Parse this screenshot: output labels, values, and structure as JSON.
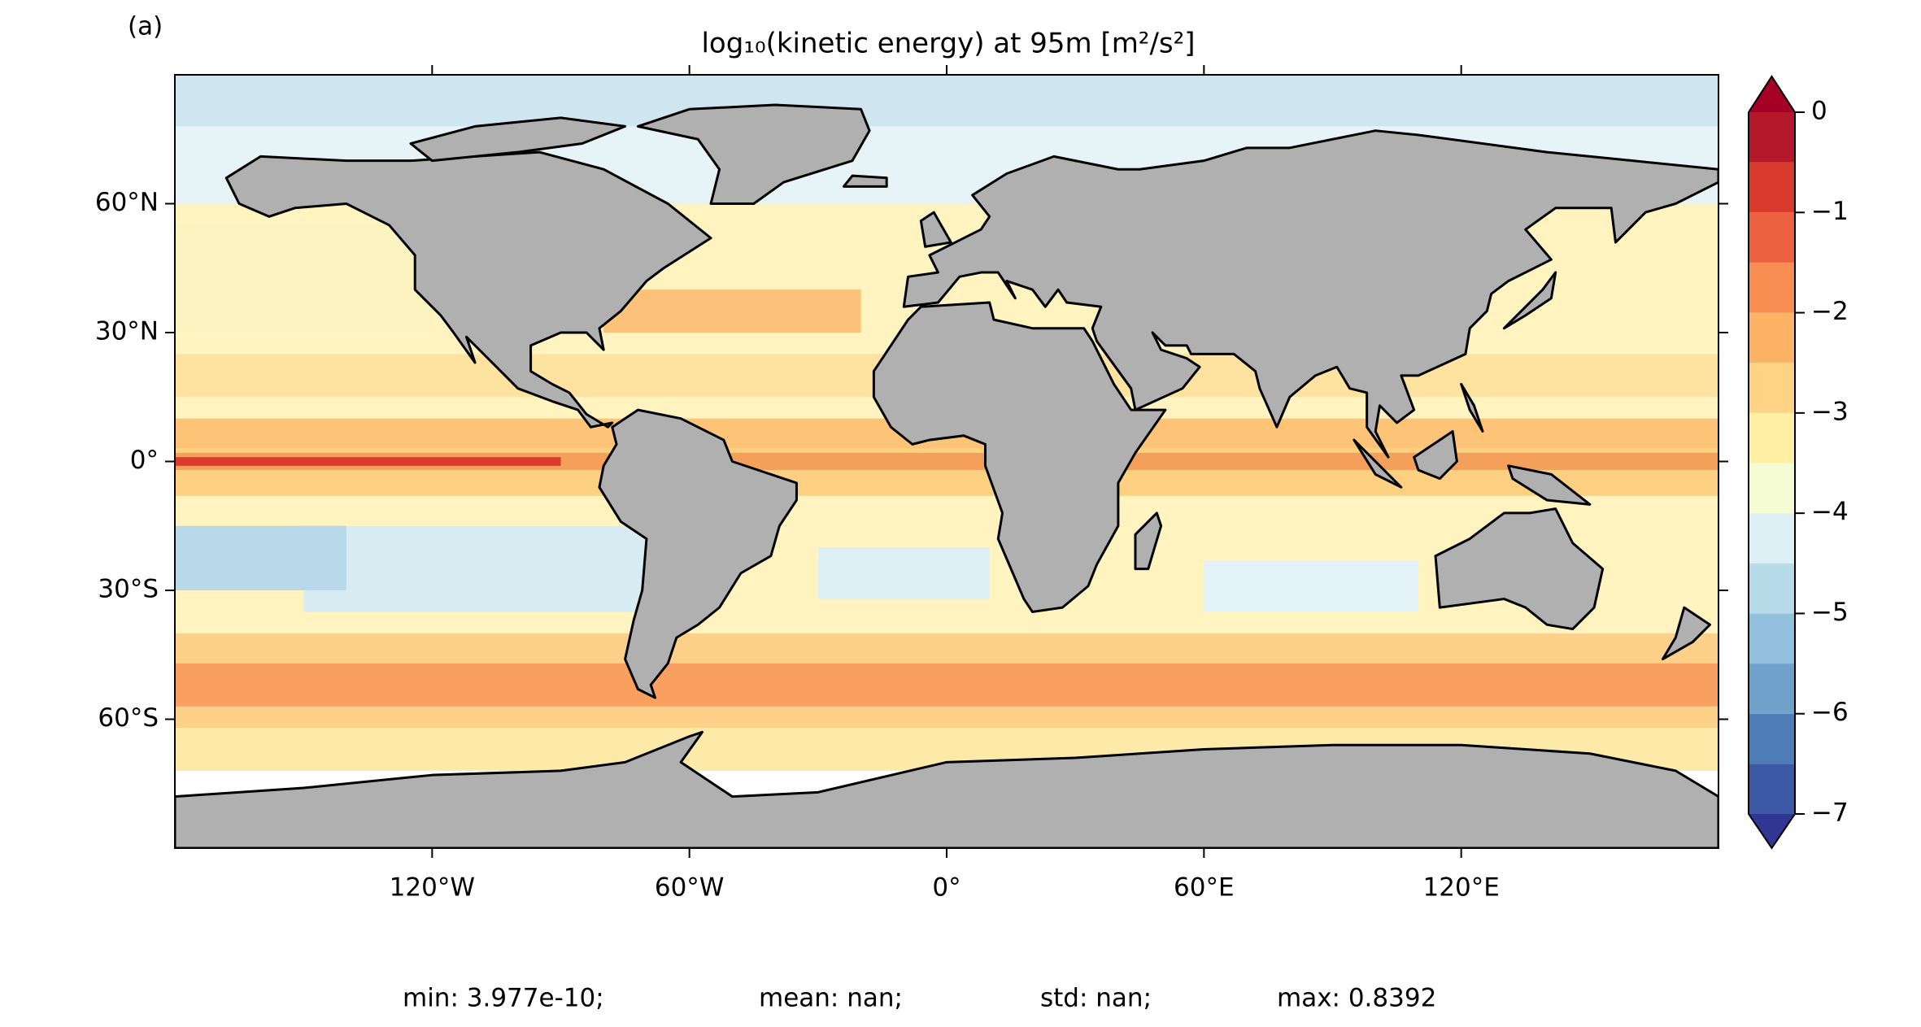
{
  "panel_label": "(a)",
  "title": "log₁₀(kinetic energy) at 95m [m²/s²]",
  "map": {
    "xlim": [
      -180,
      180
    ],
    "ylim": [
      -90,
      90
    ],
    "xticks": [
      {
        "value": -120,
        "label": "120°W"
      },
      {
        "value": -60,
        "label": "60°W"
      },
      {
        "value": 0,
        "label": "0°"
      },
      {
        "value": 60,
        "label": "60°E"
      },
      {
        "value": 120,
        "label": "120°E"
      }
    ],
    "yticks": [
      {
        "value": 60,
        "label": "60°N"
      },
      {
        "value": 30,
        "label": "30°N"
      },
      {
        "value": 0,
        "label": "0°"
      },
      {
        "value": -30,
        "label": "30°S"
      },
      {
        "value": -60,
        "label": "60°S"
      }
    ]
  },
  "colorbar": {
    "levels": [
      -7,
      -6.5,
      -6,
      -5.5,
      -5,
      -4.5,
      -4,
      -3.5,
      -3,
      -2.5,
      -2,
      -1.5,
      -1,
      -0.5,
      0
    ],
    "colors": [
      "#3c59a6",
      "#4f7db8",
      "#6fa1cb",
      "#93c0dc",
      "#b7dbe9",
      "#dcf0f6",
      "#f5fbd3",
      "#fff0a6",
      "#fed484",
      "#fdb365",
      "#f88e52",
      "#ec6140",
      "#d83a2c",
      "#b4182a"
    ],
    "under_color": "#313695",
    "over_color": "#a50026",
    "ticks": [
      0,
      {
        "value": -1,
        "label": "−1"
      },
      {
        "value": -2,
        "label": "−2"
      },
      {
        "value": -3,
        "label": "−3"
      },
      {
        "value": -4,
        "label": "−4"
      },
      {
        "value": -5,
        "label": "−5"
      },
      {
        "value": -6,
        "label": "−6"
      },
      {
        "value": -7,
        "label": "−7"
      }
    ]
  },
  "stats": [
    "min: 3.977e-10;",
    "mean: nan;",
    "std: nan;",
    "max: 0.8392"
  ]
}
